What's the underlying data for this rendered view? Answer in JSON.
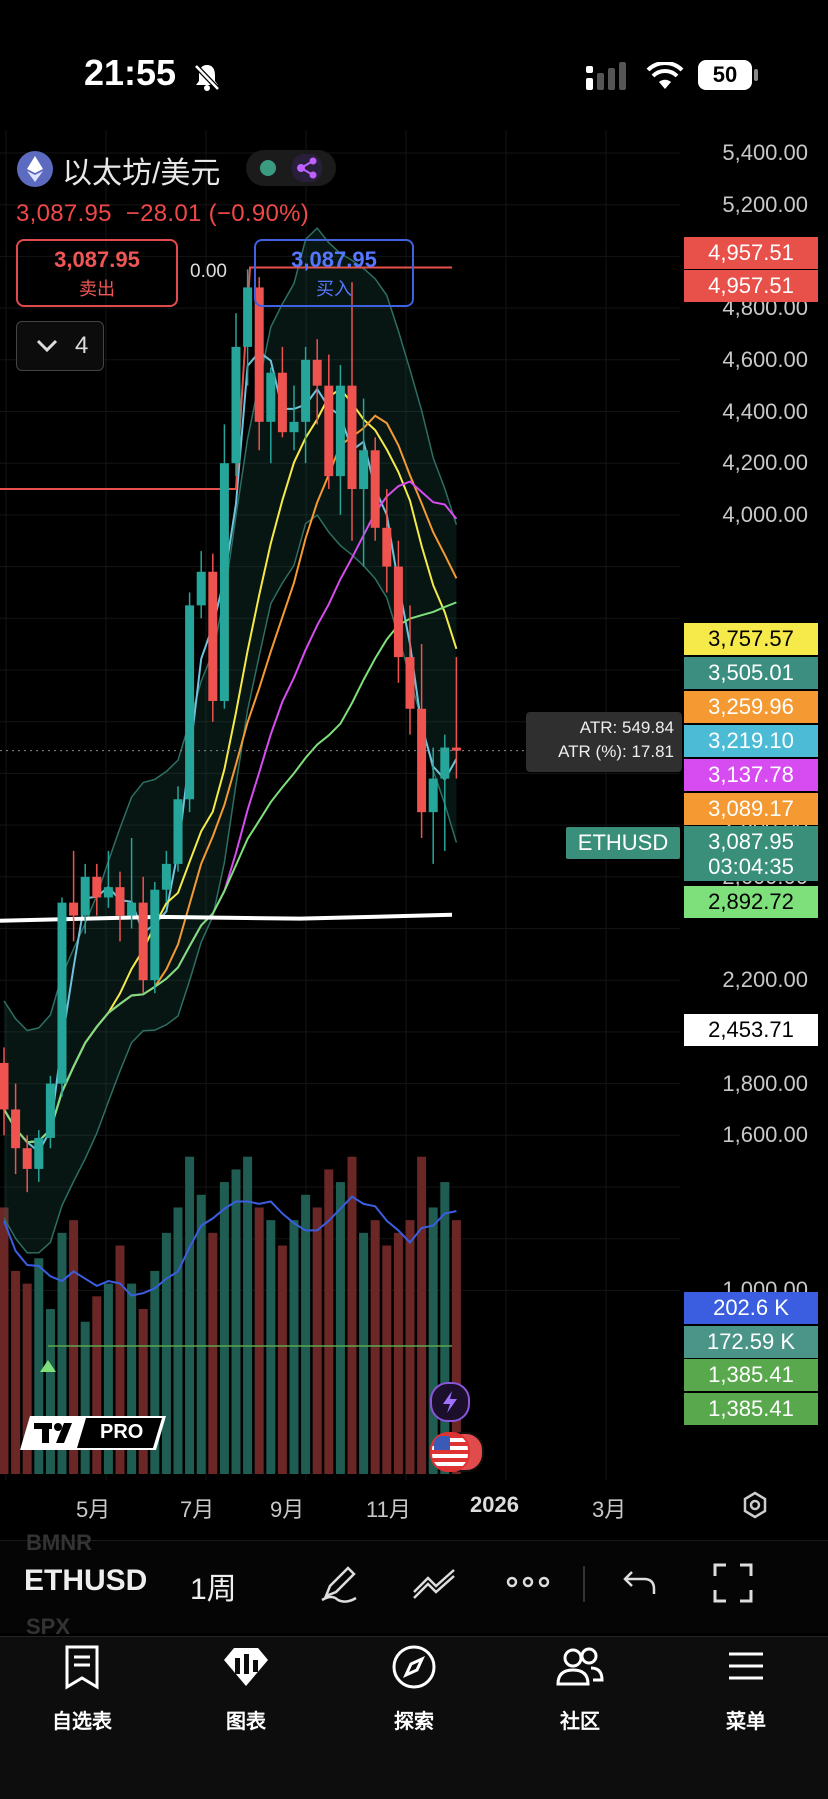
{
  "status_bar": {
    "time": "21:55",
    "battery": "50"
  },
  "header": {
    "symbol_name": "以太坊/美元",
    "last_price": "3,087.95",
    "change": "−28.01",
    "change_pct": "(−0.90%)",
    "sell": {
      "price": "3,087.95",
      "label": "卖出"
    },
    "buy": {
      "price": "3,087.95",
      "label": "买入"
    },
    "spread": "0.00",
    "indicator_count": "4"
  },
  "colors": {
    "up": "#26a69a",
    "down": "#ef5350",
    "bg": "#000000"
  },
  "chart_data": {
    "type": "candlestick",
    "symbol": "ETHUSD",
    "interval": "1周",
    "x_ticks": [
      "5月",
      "7月",
      "9月",
      "11月",
      "2026",
      "3月"
    ],
    "y_ticks": [
      "5,400.00",
      "5,200.00",
      "4,800.00",
      "4,600.00",
      "4,400.00",
      "4,200.00",
      "4,000.00",
      "2,800.00",
      "2,600.00",
      "2,200.00",
      "2,000.00",
      "1,800.00",
      "1,600.00",
      "1,000.00"
    ],
    "ylim": [
      1000,
      5500
    ],
    "price_tags": [
      {
        "value": "4,957.51",
        "color": "#e8504a"
      },
      {
        "value": "4,957.51",
        "color": "#e8504a"
      },
      {
        "value": "3,757.57",
        "color": "#f6e94a"
      },
      {
        "value": "3,505.01",
        "color": "#3c8f80"
      },
      {
        "value": "3,259.96",
        "color": "#f59a32"
      },
      {
        "value": "3,219.10",
        "color": "#4cbcd6"
      },
      {
        "value": "3,137.78",
        "color": "#d74cf0"
      },
      {
        "value": "3,089.17",
        "color": "#f59a32"
      },
      {
        "value": "3,087.95",
        "color": "#3a8f7a"
      },
      {
        "value": "2,892.72",
        "color": "#7ee07a"
      },
      {
        "value": "2,453.71",
        "color": "#ffffff"
      },
      {
        "value": "202.6 K",
        "color": "#3b5ee0"
      },
      {
        "value": "172.59 K",
        "color": "#4a9488"
      },
      {
        "value": "1,385.41",
        "color": "#5aa84e"
      },
      {
        "value": "1,385.41",
        "color": "#5aa84e"
      }
    ],
    "countdown": "03:04:35",
    "atr": {
      "label": "ATR:",
      "value": "549.84",
      "pct_label": "ATR (%):",
      "pct_value": "17.81"
    },
    "candles": [
      [
        1880,
        1940,
        1600,
        1700
      ],
      [
        1700,
        1800,
        1450,
        1550
      ],
      [
        1550,
        1600,
        1380,
        1470
      ],
      [
        1470,
        1620,
        1420,
        1590
      ],
      [
        1590,
        1830,
        1550,
        1800
      ],
      [
        1800,
        2520,
        1750,
        2500
      ],
      [
        2500,
        2700,
        2350,
        2450
      ],
      [
        2450,
        2650,
        2380,
        2600
      ],
      [
        2600,
        2650,
        2450,
        2520
      ],
      [
        2520,
        2700,
        2480,
        2560
      ],
      [
        2560,
        2620,
        2350,
        2450
      ],
      [
        2450,
        2750,
        2400,
        2500
      ],
      [
        2500,
        2600,
        2150,
        2200
      ],
      [
        2200,
        2580,
        2150,
        2550
      ],
      [
        2550,
        2700,
        2500,
        2650
      ],
      [
        2650,
        2950,
        2620,
        2900
      ],
      [
        2900,
        3700,
        2850,
        3650
      ],
      [
        3650,
        3860,
        3600,
        3780
      ],
      [
        3780,
        3850,
        3200,
        3280
      ],
      [
        3280,
        4350,
        3250,
        4200
      ],
      [
        4200,
        4780,
        4150,
        4650
      ],
      [
        4650,
        4950,
        4500,
        4880
      ],
      [
        4880,
        4920,
        4250,
        4360
      ],
      [
        4360,
        4570,
        4200,
        4550
      ],
      [
        4550,
        4650,
        4300,
        4320
      ],
      [
        4320,
        4500,
        4250,
        4360
      ],
      [
        4360,
        4650,
        4200,
        4600
      ],
      [
        4600,
        4680,
        4350,
        4500
      ],
      [
        4500,
        4620,
        4100,
        4150
      ],
      [
        4150,
        4580,
        4000,
        4500
      ],
      [
        4500,
        4900,
        3900,
        4100
      ],
      [
        4100,
        4450,
        3800,
        4250
      ],
      [
        4250,
        4300,
        3900,
        3950
      ],
      [
        3950,
        4100,
        3700,
        3800
      ],
      [
        3800,
        3900,
        3350,
        3450
      ],
      [
        3450,
        3650,
        3150,
        3250
      ],
      [
        3250,
        3500,
        2750,
        2850
      ],
      [
        2850,
        3100,
        2650,
        2980
      ],
      [
        2980,
        3150,
        2700,
        3100
      ],
      [
        3100,
        3450,
        2980,
        3088
      ]
    ],
    "volume": [
      210,
      160,
      150,
      170,
      130,
      190,
      200,
      120,
      140,
      150,
      180,
      150,
      130,
      160,
      190,
      210,
      250,
      220,
      190,
      230,
      240,
      250,
      210,
      200,
      180,
      200,
      220,
      210,
      240,
      230,
      250,
      190,
      200,
      180,
      190,
      200,
      250,
      210,
      230,
      200
    ]
  },
  "bottom_bar": {
    "symbol": "ETHUSD",
    "interval": "1周",
    "ghost_1": "BMNR",
    "ghost_2": "SPX"
  },
  "nav": [
    {
      "label": "自选表",
      "icon": "watchlist-icon"
    },
    {
      "label": "图表",
      "icon": "chart-icon"
    },
    {
      "label": "探索",
      "icon": "compass-icon"
    },
    {
      "label": "社区",
      "icon": "community-icon"
    },
    {
      "label": "菜单",
      "icon": "menu-icon"
    }
  ],
  "logo_text": "PRO"
}
